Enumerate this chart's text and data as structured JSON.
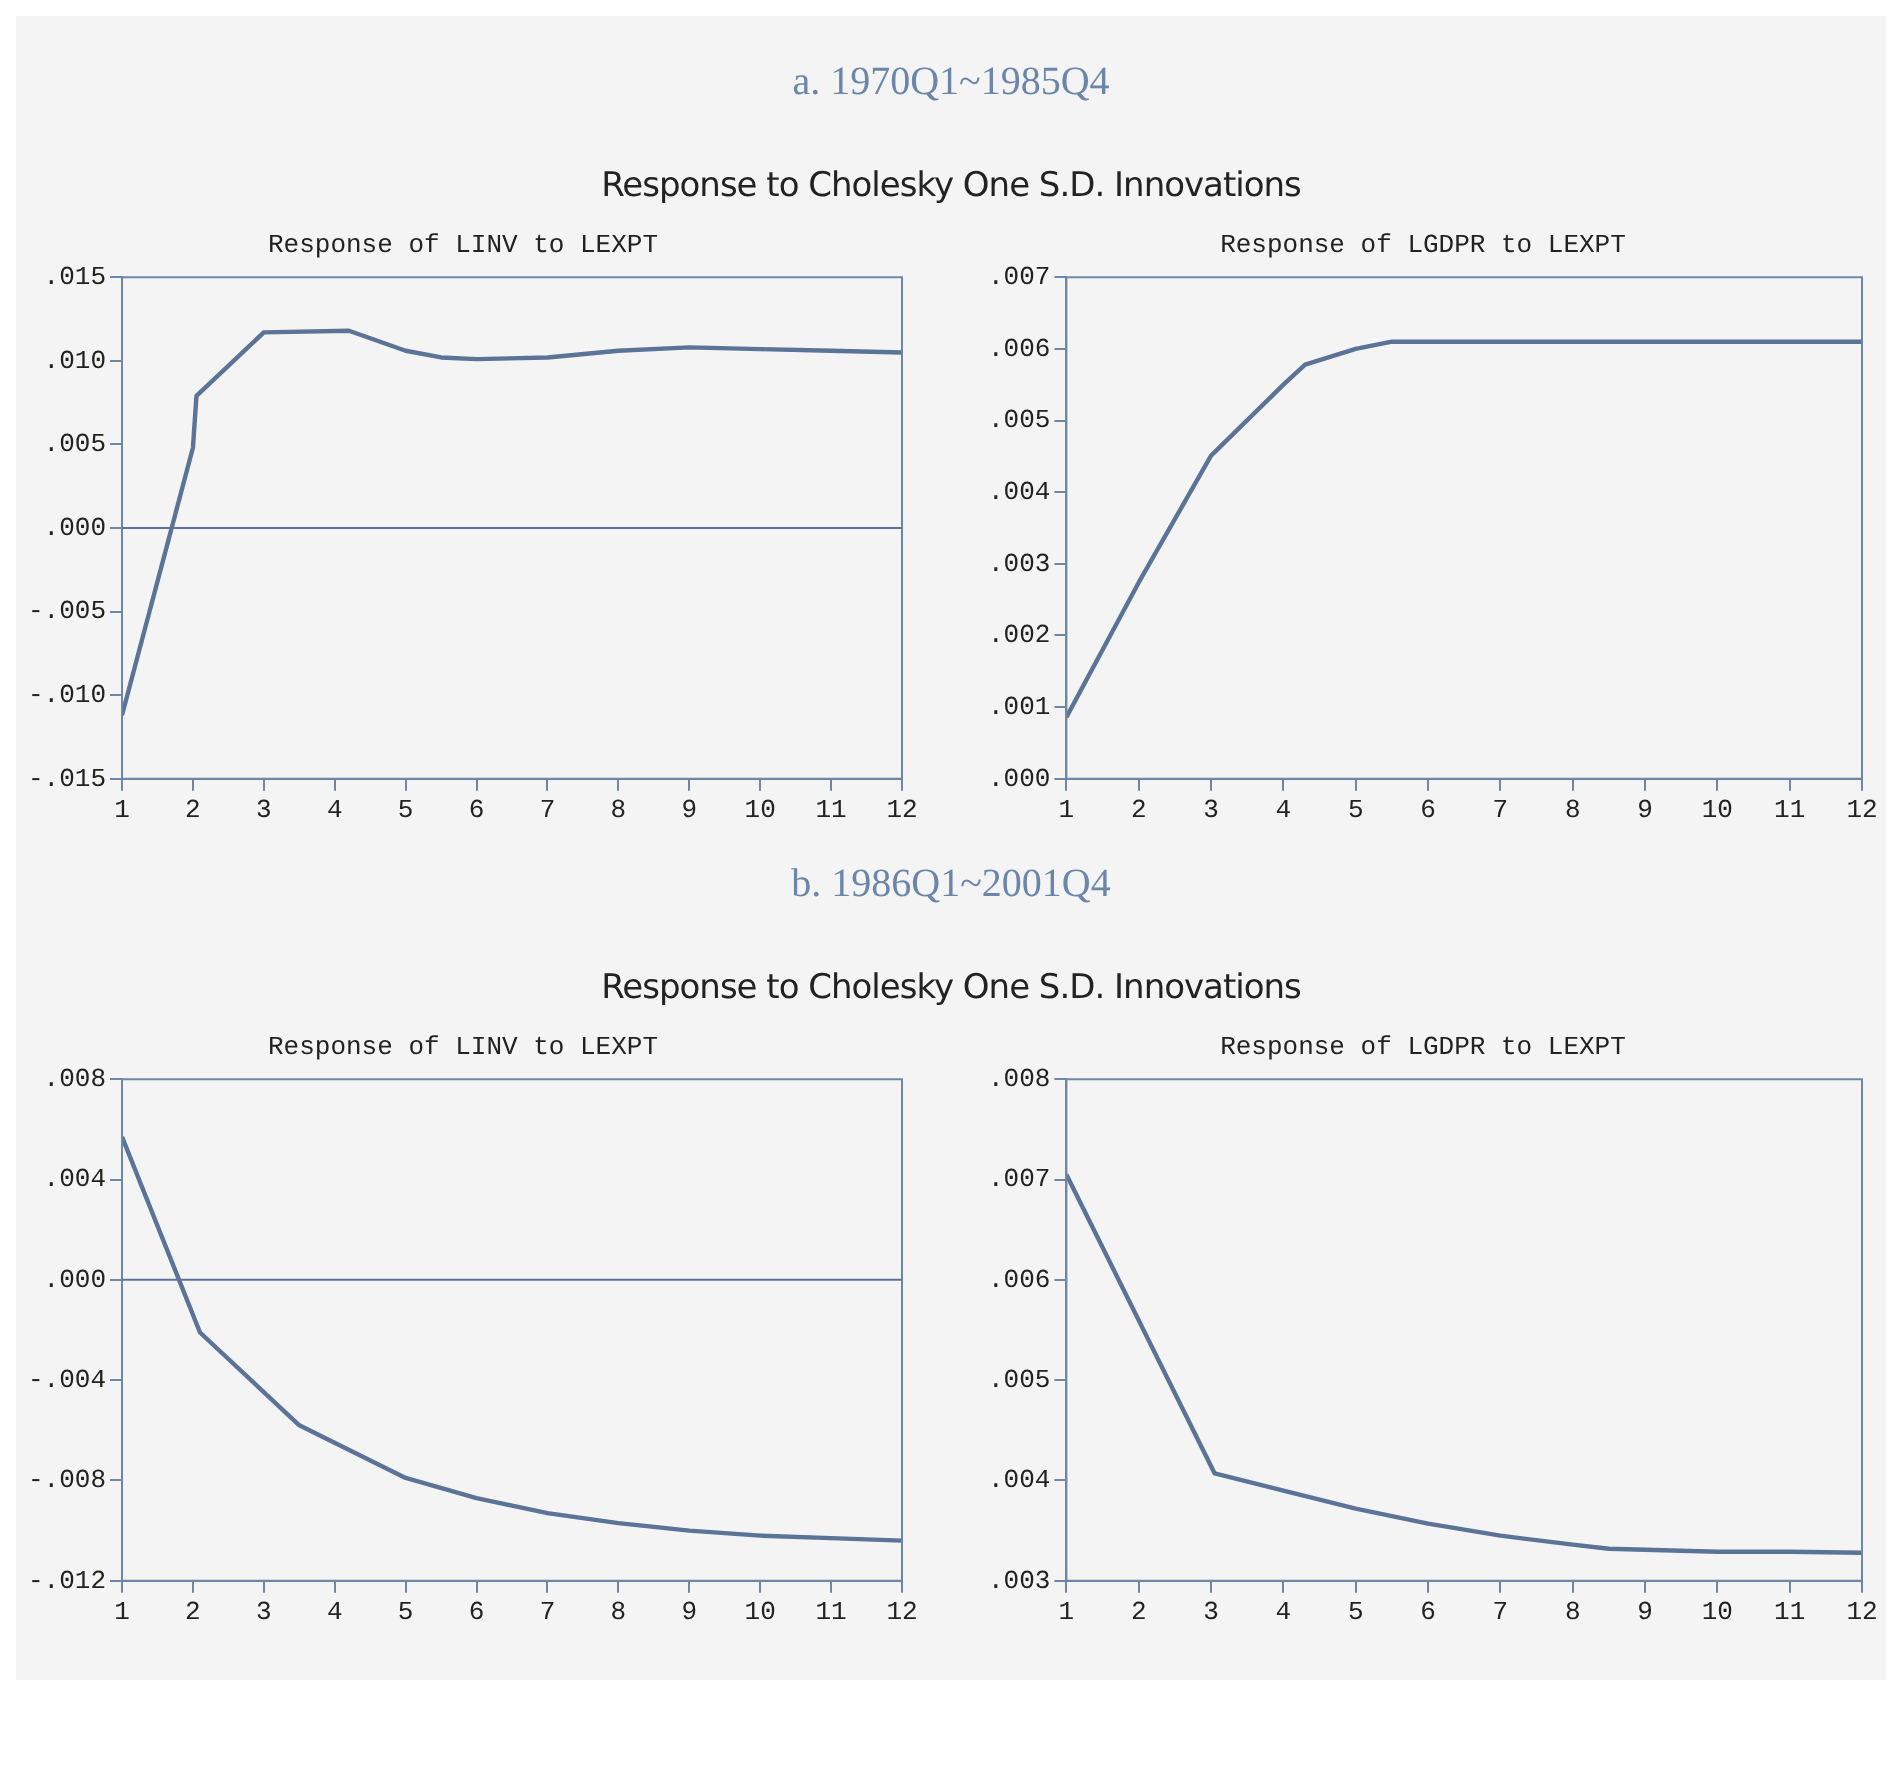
{
  "chart_data": [
    {
      "type": "line",
      "title": "Response of LINV to LEXPT",
      "annotations": [
        "a. 1970Q1~1985Q4",
        "Response to Cholesky One S.D. Innovations"
      ],
      "series": [
        {
          "color": "#5b7396",
          "x": [
            1,
            2,
            2.05,
            3,
            4.2,
            5,
            5.5,
            6,
            7,
            8,
            9,
            10,
            11,
            12
          ],
          "values": [
            -0.0112,
            0.0048,
            0.0079,
            0.0117,
            0.0118,
            0.0106,
            0.0102,
            0.0101,
            0.0102,
            0.0106,
            0.0108,
            0.0107,
            0.0106,
            0.0105
          ]
        }
      ],
      "xlim": [
        1,
        12
      ],
      "xticks": [
        1,
        2,
        3,
        4,
        5,
        6,
        7,
        8,
        9,
        10,
        11,
        12
      ],
      "ylim": [
        -0.015,
        0.015
      ],
      "yticks": [
        {
          "value": -0.015,
          "label": "-.015"
        },
        {
          "value": -0.01,
          "label": "-.010"
        },
        {
          "value": -0.005,
          "label": "-.005"
        },
        {
          "value": 0,
          "label": ".000"
        },
        {
          "value": 0.005,
          "label": ".005"
        },
        {
          "value": 0.01,
          "label": ".010"
        },
        {
          "value": 0.015,
          "label": ".015"
        }
      ],
      "ref_lines": [
        {
          "axis": "y",
          "value": 0,
          "color": "#5b7396"
        }
      ],
      "legend": false
    },
    {
      "type": "line",
      "title": "Response of LGDPR to LEXPT",
      "series": [
        {
          "color": "#5b7396",
          "x": [
            1,
            2,
            3,
            4,
            4.3,
            5,
            5.5,
            6,
            7,
            8,
            9,
            10,
            11,
            12
          ],
          "values": [
            0.00086,
            0.00274,
            0.00451,
            0.0055,
            0.00578,
            0.006,
            0.0061,
            0.0061,
            0.0061,
            0.0061,
            0.0061,
            0.0061,
            0.0061,
            0.0061
          ]
        }
      ],
      "xlim": [
        1,
        12
      ],
      "xticks": [
        1,
        2,
        3,
        4,
        5,
        6,
        7,
        8,
        9,
        10,
        11,
        12
      ],
      "ylim": [
        0,
        0.007
      ],
      "yticks": [
        {
          "value": 0,
          "label": ".000"
        },
        {
          "value": 0.001,
          "label": ".001"
        },
        {
          "value": 0.002,
          "label": ".002"
        },
        {
          "value": 0.003,
          "label": ".003"
        },
        {
          "value": 0.004,
          "label": ".004"
        },
        {
          "value": 0.005,
          "label": ".005"
        },
        {
          "value": 0.006,
          "label": ".006"
        },
        {
          "value": 0.007,
          "label": ".007"
        }
      ],
      "legend": false
    },
    {
      "type": "line",
      "title": "Response of LINV to LEXPT",
      "annotations": [
        "b. 1986Q1~2001Q4",
        "Response to Cholesky One S.D. Innovations"
      ],
      "series": [
        {
          "color": "#5b7396",
          "x": [
            1,
            2.1,
            3.5,
            5,
            6,
            7,
            8,
            9,
            10,
            11,
            12
          ],
          "values": [
            0.0057,
            -0.0021,
            -0.0058,
            -0.0079,
            -0.0087,
            -0.0093,
            -0.0097,
            -0.01,
            -0.0102,
            -0.0103,
            -0.0104
          ]
        }
      ],
      "xlim": [
        1,
        12
      ],
      "xticks": [
        1,
        2,
        3,
        4,
        5,
        6,
        7,
        8,
        9,
        10,
        11,
        12
      ],
      "ylim": [
        -0.012,
        0.008
      ],
      "yticks": [
        {
          "value": -0.012,
          "label": "-.012"
        },
        {
          "value": -0.008,
          "label": "-.008"
        },
        {
          "value": -0.004,
          "label": "-.004"
        },
        {
          "value": 0,
          "label": ".000"
        },
        {
          "value": 0.004,
          "label": ".004"
        },
        {
          "value": 0.008,
          "label": ".008"
        }
      ],
      "ref_lines": [
        {
          "axis": "y",
          "value": 0,
          "color": "#5b7396"
        }
      ],
      "legend": false
    },
    {
      "type": "line",
      "title": "Response of LGDPR to LEXPT",
      "series": [
        {
          "color": "#5b7396",
          "x": [
            1,
            3.05,
            4,
            5,
            6,
            7,
            8,
            8.5,
            9,
            10,
            11,
            12
          ],
          "values": [
            0.00705,
            0.00407,
            0.0039,
            0.00372,
            0.00357,
            0.00345,
            0.00336,
            0.00332,
            0.00331,
            0.00329,
            0.00329,
            0.00328
          ]
        }
      ],
      "xlim": [
        1,
        12
      ],
      "xticks": [
        1,
        2,
        3,
        4,
        5,
        6,
        7,
        8,
        9,
        10,
        11,
        12
      ],
      "ylim": [
        0.003,
        0.008
      ],
      "yticks": [
        {
          "value": 0.003,
          "label": ".003"
        },
        {
          "value": 0.004,
          "label": ".004"
        },
        {
          "value": 0.005,
          "label": ".005"
        },
        {
          "value": 0.006,
          "label": ".006"
        },
        {
          "value": 0.007,
          "label": ".007"
        },
        {
          "value": 0.008,
          "label": ".008"
        }
      ],
      "legend": false
    }
  ]
}
